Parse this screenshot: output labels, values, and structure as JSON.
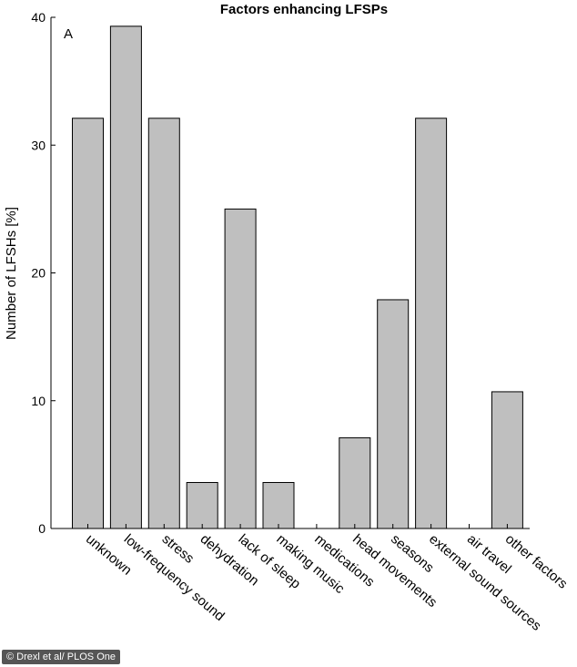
{
  "chart_data": {
    "type": "bar",
    "title": "Factors enhancing LFSPs",
    "panel_label": "A",
    "ylabel": "Number of LFSHs [%]",
    "xlabel": "",
    "ylim": [
      0,
      40
    ],
    "yticks": [
      0,
      10,
      20,
      30,
      40
    ],
    "categories": [
      "unknown",
      "low-frequency sound",
      "stress",
      "dehydration",
      "lack of sleep",
      "making music",
      "medications",
      "head movements",
      "seasons",
      "external sound sources",
      "air travel",
      "other factors"
    ],
    "values": [
      32.1,
      39.3,
      32.1,
      3.6,
      25.0,
      3.6,
      0,
      7.1,
      17.9,
      32.1,
      0,
      10.7
    ],
    "bar_color": "#bfbfbf",
    "grid": false
  },
  "credit": "© Drexl et al/ PLOS One"
}
